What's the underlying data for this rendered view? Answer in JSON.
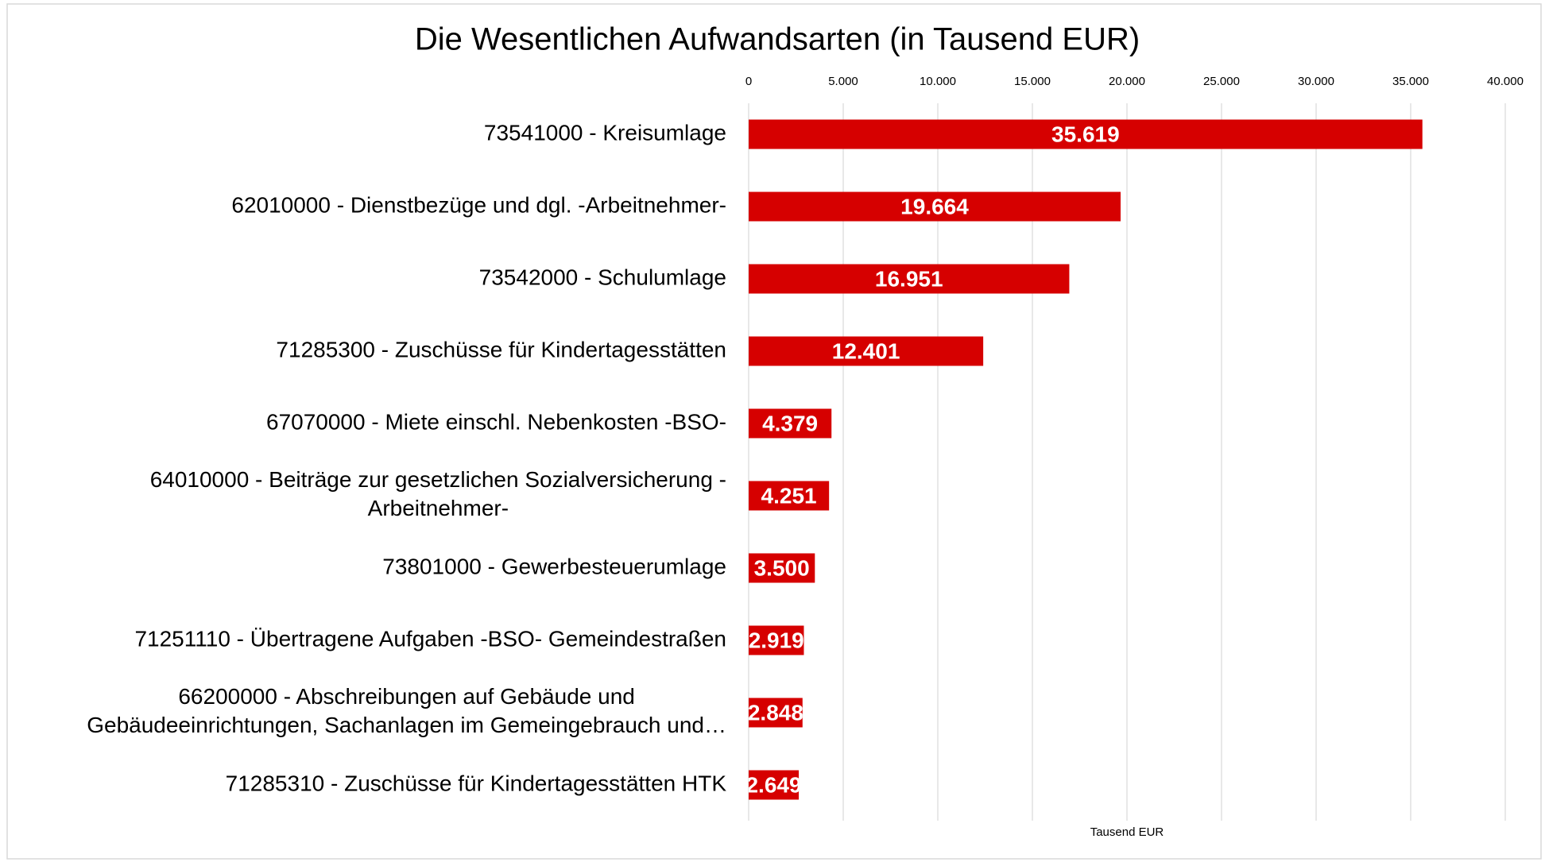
{
  "chart_data": {
    "type": "barh",
    "title": "Die Wesentlichen Aufwandsarten (in Tausend EUR)",
    "x_label": "Tausend EUR",
    "categories": [
      "73541000 - Kreisumlage",
      "62010000 - Dienstbezüge und dgl. -Arbeitnehmer-",
      "73542000 - Schulumlage",
      "71285300 - Zuschüsse für Kindertagesstätten",
      "67070000 - Miete einschl. Nebenkosten -BSO-",
      "64010000 - Beiträge zur gesetzlichen Sozialversicherung -\nArbeitnehmer-",
      "73801000 - Gewerbesteuerumlage",
      "71251110 - Übertragene Aufgaben -BSO- Gemeindestraßen",
      "66200000 - Abschreibungen auf Gebäude und\nGebäudeeinrichtungen, Sachanlagen im Gemeingebrauch und…",
      "71285310 - Zuschüsse für Kindertagesstätten HTK"
    ],
    "values": [
      35619,
      19664,
      16951,
      12401,
      4379,
      4251,
      3500,
      2919,
      2848,
      2649
    ],
    "value_labels": [
      "35.619",
      "19.664",
      "16.951",
      "12.401",
      "4.379",
      "4.251",
      "3.500",
      "2.919",
      "2.848",
      "2.649"
    ],
    "color": "#d60000",
    "xlim": [
      0,
      40000
    ],
    "xticks": [
      0,
      {
        "value": 5000,
        "label": "5.000"
      },
      {
        "value": 10000,
        "label": "10.000"
      },
      {
        "value": 15000,
        "label": "15.000"
      },
      {
        "value": 20000,
        "label": "20.000"
      },
      {
        "value": 25000,
        "label": "25.000"
      },
      {
        "value": 30000,
        "label": "30.000"
      },
      {
        "value": 35000,
        "label": "35.000"
      },
      {
        "value": 40000,
        "label": "40.000"
      }
    ],
    "grid": true
  }
}
